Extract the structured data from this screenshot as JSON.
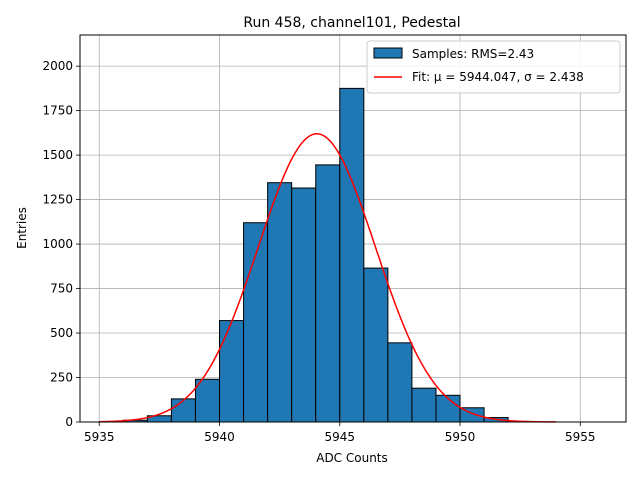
{
  "chart_data": {
    "type": "bar",
    "title": "Run 458, channel101, Pedestal",
    "xlabel": "ADC Counts",
    "ylabel": "Entries",
    "xlim": [
      5934.2,
      5956.9
    ],
    "ylim": [
      0,
      2175
    ],
    "xticks": [
      5935,
      5940,
      5945,
      5950,
      5955
    ],
    "yticks": [
      0,
      250,
      500,
      750,
      1000,
      1250,
      1500,
      1750,
      2000
    ],
    "grid": true,
    "legend_position": "top-right",
    "colors": {
      "bar_fill": "#1f77b4",
      "bar_edge": "#000000",
      "fit_line": "#ff0000",
      "grid": "#b0b0b0"
    },
    "histogram": {
      "name": "Samples: RMS=2.43",
      "bin_width": 1,
      "bin_starts": [
        5935,
        5936,
        5937,
        5938,
        5939,
        5940,
        5941,
        5942,
        5943,
        5944,
        5945,
        5946,
        5947,
        5948,
        5949,
        5950,
        5951,
        5952,
        5953,
        5954,
        5955
      ],
      "values": [
        2,
        10,
        35,
        130,
        240,
        570,
        1120,
        1345,
        1315,
        1445,
        1875,
        865,
        445,
        190,
        150,
        80,
        25,
        3,
        0,
        0,
        0
      ]
    },
    "fit": {
      "name": "Fit: μ = 5944.047, σ = 2.438",
      "mu": 5944.047,
      "sigma": 2.438,
      "amplitude": 1620,
      "x_range": [
        5935,
        5954
      ]
    }
  }
}
